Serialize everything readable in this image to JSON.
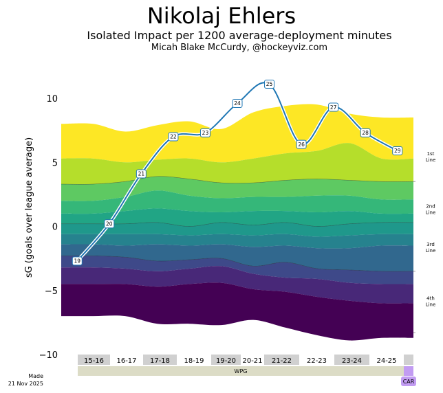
{
  "header": {
    "title": "Nikolaj Ehlers",
    "subtitle": "Isolated Impact per 1200 average-deployment minutes",
    "byline": "Micah Blake McCurdy, @hockeyviz.com"
  },
  "footer": {
    "made_label": "Made",
    "made_date": "21 Nov 2025"
  },
  "chart_data": {
    "type": "line",
    "title": "Nikolaj Ehlers",
    "ylabel": "sG (goals over league average)",
    "ylim": [
      -10,
      13
    ],
    "yticks": [
      {
        "value": 10,
        "label": "10"
      },
      {
        "value": 5,
        "label": "5"
      },
      {
        "value": 0,
        "label": "0"
      },
      {
        "value": -5,
        "label": "−5"
      },
      {
        "value": -10,
        "label": "−10"
      }
    ],
    "seasons": [
      "15-16",
      "16-17",
      "17-18",
      "18-19",
      "19-20",
      "20-21",
      "21-22",
      "22-23",
      "23-24",
      "24-25",
      ""
    ],
    "teams": [
      {
        "name": "WPG",
        "start": 0,
        "end": 10,
        "color": "#dcdcc6"
      },
      {
        "name": "CAR",
        "start": 10,
        "end": 11,
        "color": "#c29cf2"
      }
    ],
    "series": [
      {
        "name": "Player impact by age",
        "color": "#1f77b4",
        "points": [
          {
            "x": 0.5,
            "age": "19",
            "y": -2.7
          },
          {
            "x": 1.5,
            "age": "20",
            "y": 0.2
          },
          {
            "x": 2.5,
            "age": "21",
            "y": 4.1
          },
          {
            "x": 3.5,
            "age": "22",
            "y": 7.0
          },
          {
            "x": 4.5,
            "age": "23",
            "y": 7.3
          },
          {
            "x": 5.5,
            "age": "24",
            "y": 9.6
          },
          {
            "x": 6.5,
            "age": "25",
            "y": 11.1
          },
          {
            "x": 7.5,
            "age": "26",
            "y": 6.4
          },
          {
            "x": 8.5,
            "age": "27",
            "y": 9.3
          },
          {
            "x": 9.5,
            "age": "28",
            "y": 7.3
          },
          {
            "x": 10.5,
            "age": "29",
            "y": 5.9
          }
        ]
      }
    ],
    "band_x": [
      0.0,
      1.0,
      2.0,
      3.0,
      4.0,
      5.0,
      6.0,
      7.0,
      8.0,
      9.0,
      10.0,
      11.0
    ],
    "band_boundaries": [
      [
        8.0,
        8.0,
        7.4,
        7.9,
        8.2,
        7.6,
        8.9,
        9.4,
        9.5,
        8.8,
        8.5,
        8.5
      ],
      [
        5.3,
        5.3,
        5.0,
        5.2,
        5.3,
        5.0,
        5.3,
        5.7,
        5.9,
        6.5,
        5.3,
        5.3
      ],
      [
        3.3,
        3.3,
        3.5,
        3.9,
        3.7,
        3.4,
        3.4,
        3.6,
        3.7,
        3.6,
        3.5,
        3.5
      ],
      [
        2.0,
        2.0,
        2.3,
        2.8,
        2.4,
        2.2,
        2.3,
        2.3,
        2.4,
        2.4,
        2.1,
        2.1
      ],
      [
        1.0,
        1.0,
        1.2,
        1.4,
        1.2,
        1.1,
        1.2,
        1.2,
        1.1,
        1.2,
        1.0,
        1.0
      ],
      [
        0.2,
        0.2,
        0.2,
        0.3,
        0.0,
        0.3,
        0.1,
        0.3,
        0.0,
        0.2,
        0.3,
        0.3
      ],
      [
        -0.6,
        -0.6,
        -0.6,
        -0.6,
        -0.7,
        -0.6,
        -0.7,
        -0.6,
        -0.8,
        -0.7,
        -0.6,
        -0.6
      ],
      [
        -1.4,
        -1.4,
        -1.5,
        -1.4,
        -1.5,
        -1.4,
        -1.6,
        -1.5,
        -1.7,
        -1.7,
        -1.5,
        -1.5
      ],
      [
        -2.3,
        -2.3,
        -2.4,
        -2.7,
        -2.6,
        -2.5,
        -3.1,
        -2.8,
        -3.3,
        -3.4,
        -3.5,
        -3.5
      ],
      [
        -3.2,
        -3.2,
        -3.3,
        -3.5,
        -3.3,
        -3.1,
        -3.7,
        -4.0,
        -4.1,
        -4.4,
        -4.5,
        -4.5
      ],
      [
        -4.5,
        -4.5,
        -4.5,
        -4.7,
        -4.5,
        -4.4,
        -4.9,
        -5.1,
        -5.5,
        -5.8,
        -6.0,
        -6.0
      ],
      [
        -7.0,
        -7.0,
        -7.0,
        -7.6,
        -7.6,
        -7.7,
        -7.3,
        -7.9,
        -8.5,
        -8.9,
        -8.7,
        -8.7
      ]
    ],
    "band_colors": [
      "#fde725",
      "#b5de2b",
      "#5ec962",
      "#35b779",
      "#21a585",
      "#1f988b",
      "#26828e",
      "#31688e",
      "#3e4989",
      "#482878",
      "#440154"
    ],
    "line_labels": [
      {
        "label": "1st Line",
        "y": 5.4
      },
      {
        "label": "2nd Line",
        "y": 1.3
      },
      {
        "label": "3rd Line",
        "y": -1.7
      },
      {
        "label": "4th Line",
        "y": -5.9
      }
    ],
    "line_separators": [
      3.5,
      -3.5,
      -8.3
    ]
  }
}
